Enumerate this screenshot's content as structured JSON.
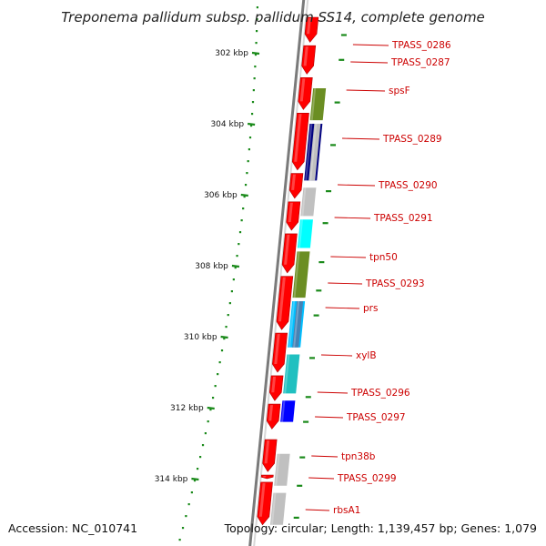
{
  "title": "Treponema pallidum subsp. pallidum SS14, complete genome",
  "footer": {
    "accession": "Accession: NC_010741",
    "topology": "Topology: circular; Length: 1,139,457 bp; Genes: 1,079"
  },
  "colors": {
    "backbone": "#8a8a8a",
    "forward_gene": "#ff0000",
    "tick": "#1a8a1a",
    "label": "#cc0000",
    "leader": "#cc0000"
  },
  "scale": {
    "unit": "kbp",
    "ticks": [
      {
        "kbp": 302,
        "label": "302 kbp"
      },
      {
        "kbp": 304,
        "label": "304 kbp"
      },
      {
        "kbp": 306,
        "label": "306 kbp"
      },
      {
        "kbp": 308,
        "label": "308 kbp"
      },
      {
        "kbp": 310,
        "label": "310 kbp"
      },
      {
        "kbp": 312,
        "label": "312 kbp"
      },
      {
        "kbp": 314,
        "label": "314 kbp"
      }
    ]
  },
  "forward_genes": [
    {
      "start": 301.0,
      "end": 301.7
    },
    {
      "start": 301.8,
      "end": 302.6
    },
    {
      "start": 302.7,
      "end": 303.6
    },
    {
      "start": 303.7,
      "end": 305.3
    },
    {
      "start": 305.4,
      "end": 306.1
    },
    {
      "start": 306.2,
      "end": 307.0
    },
    {
      "start": 307.1,
      "end": 308.2
    },
    {
      "start": 308.3,
      "end": 309.8
    },
    {
      "start": 309.9,
      "end": 311.0
    },
    {
      "start": 311.1,
      "end": 311.8
    },
    {
      "start": 311.9,
      "end": 312.6
    },
    {
      "start": 312.9,
      "end": 313.8
    },
    {
      "start": 313.9,
      "end": 314.0
    },
    {
      "start": 314.1,
      "end": 315.3
    }
  ],
  "cog_genes": [
    {
      "start": 303.0,
      "end": 303.9,
      "color": "#6b8e23"
    },
    {
      "start": 304.0,
      "end": 305.6,
      "color": "#000080"
    },
    {
      "start": 304.0,
      "end": 305.6,
      "color": "#c0c0c0",
      "sub": true
    },
    {
      "start": 305.8,
      "end": 306.6,
      "color": "#c0c0c0"
    },
    {
      "start": 306.7,
      "end": 307.5,
      "color": "#00ffff"
    },
    {
      "start": 307.6,
      "end": 308.9,
      "color": "#6b8e23"
    },
    {
      "start": 309.0,
      "end": 310.3,
      "color": "#00bfff"
    },
    {
      "start": 309.0,
      "end": 310.3,
      "color": "#4682b4",
      "sub": true
    },
    {
      "start": 310.5,
      "end": 311.6,
      "color": "#20c0c0"
    },
    {
      "start": 311.8,
      "end": 312.4,
      "color": "#0000ff"
    },
    {
      "start": 313.3,
      "end": 314.2,
      "color": "#c0c0c0"
    },
    {
      "start": 314.4,
      "end": 315.3,
      "color": "#c0c0c0"
    }
  ],
  "gene_labels": [
    {
      "name": "TPASS_0286",
      "kbp": 301.5
    },
    {
      "name": "TPASS_0287",
      "kbp": 302.2
    },
    {
      "name": "spsF",
      "kbp": 303.4
    },
    {
      "name": "TPASS_0289",
      "kbp": 304.6
    },
    {
      "name": "TPASS_0290",
      "kbp": 305.9
    },
    {
      "name": "TPASS_0291",
      "kbp": 306.8
    },
    {
      "name": "tpn50",
      "kbp": 307.9
    },
    {
      "name": "TPASS_0293",
      "kbp": 308.7
    },
    {
      "name": "prs",
      "kbp": 309.4
    },
    {
      "name": "xylB",
      "kbp": 310.6
    },
    {
      "name": "TPASS_0296",
      "kbp": 311.7
    },
    {
      "name": "TPASS_0297",
      "kbp": 312.4
    },
    {
      "name": "tpn38b",
      "kbp": 313.4
    },
    {
      "name": "TPASS_0299",
      "kbp": 314.2
    },
    {
      "name": "rbsA1",
      "kbp": 315.1
    }
  ]
}
